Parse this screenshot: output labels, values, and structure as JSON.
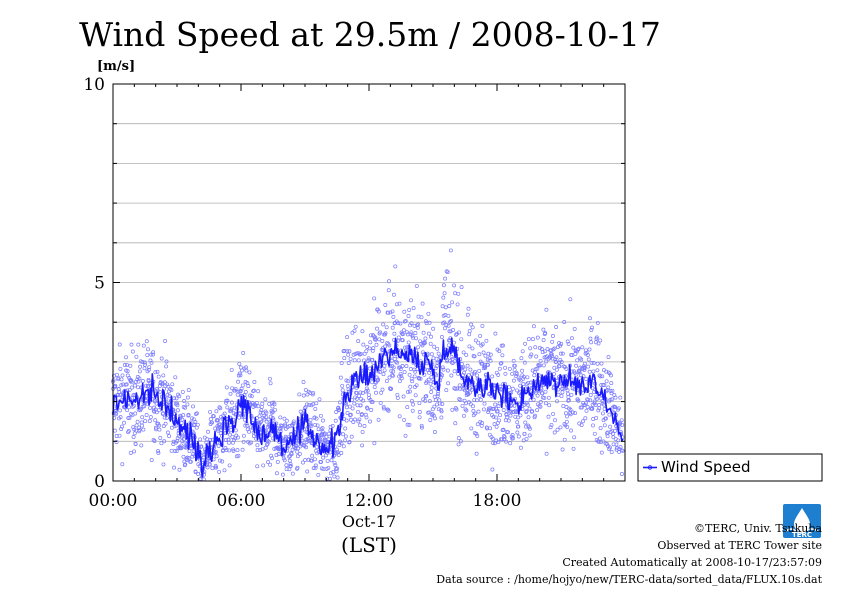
{
  "chart_data": {
    "type": "scatter",
    "title": "Wind Speed at 29.5m / 2008-10-17",
    "ylabel": "[m/s]",
    "xlabel": "(LST)",
    "date_label": "Oct-17",
    "ylim": [
      0,
      10
    ],
    "xlim_hours": [
      0,
      24
    ],
    "y_ticks": [
      0,
      5,
      10
    ],
    "y_tick_labels": [
      "0",
      "5",
      "10"
    ],
    "x_ticks_hours": [
      0,
      6,
      12,
      18
    ],
    "x_tick_labels": [
      "00:00",
      "06:00",
      "12:00",
      "18:00"
    ],
    "grid": "horizontal",
    "legend_position": "right-bottom",
    "colors": {
      "line": "#1a1aff",
      "points": "#7b7bff",
      "grid": "#b0b0b0"
    },
    "series": [
      {
        "name": "Wind Speed",
        "x_hours": [
          0.0,
          0.5,
          1.0,
          1.5,
          2.0,
          2.5,
          3.0,
          3.5,
          4.0,
          4.25,
          4.5,
          5.0,
          5.5,
          5.75,
          6.0,
          6.5,
          7.0,
          7.5,
          8.0,
          8.5,
          9.0,
          9.5,
          10.0,
          10.5,
          10.75,
          11.0,
          11.5,
          12.0,
          12.5,
          13.0,
          13.5,
          14.0,
          14.5,
          15.0,
          15.25,
          15.5,
          16.0,
          16.5,
          17.0,
          17.5,
          18.0,
          18.5,
          19.0,
          19.5,
          20.0,
          20.5,
          21.0,
          21.5,
          22.0,
          22.5,
          23.0,
          23.5,
          23.9
        ],
        "values": [
          1.9,
          2.1,
          2.0,
          2.2,
          2.1,
          2.0,
          1.4,
          1.2,
          0.8,
          0.4,
          0.9,
          1.1,
          1.6,
          1.4,
          2.2,
          1.5,
          1.2,
          1.3,
          0.9,
          1.0,
          1.4,
          1.1,
          0.8,
          1.0,
          1.8,
          2.3,
          2.5,
          2.7,
          3.0,
          3.3,
          3.2,
          3.1,
          3.0,
          2.9,
          2.2,
          3.6,
          3.2,
          2.6,
          2.4,
          2.5,
          2.2,
          2.1,
          2.0,
          2.3,
          2.5,
          2.6,
          2.4,
          2.5,
          2.4,
          2.6,
          2.1,
          1.6,
          1.0
        ]
      }
    ]
  },
  "footer": {
    "copyright": "©TERC, Univ. Tsukuba",
    "observed": "Observed at TERC Tower site",
    "created": "Created Automatically at 2008-10-17/23:57:09",
    "source": "Data source : /home/hojyo/new/TERC-data/sorted_data/FLUX.10s.dat"
  },
  "logo": {
    "text": "TERC",
    "color": "#1e7fd0"
  }
}
